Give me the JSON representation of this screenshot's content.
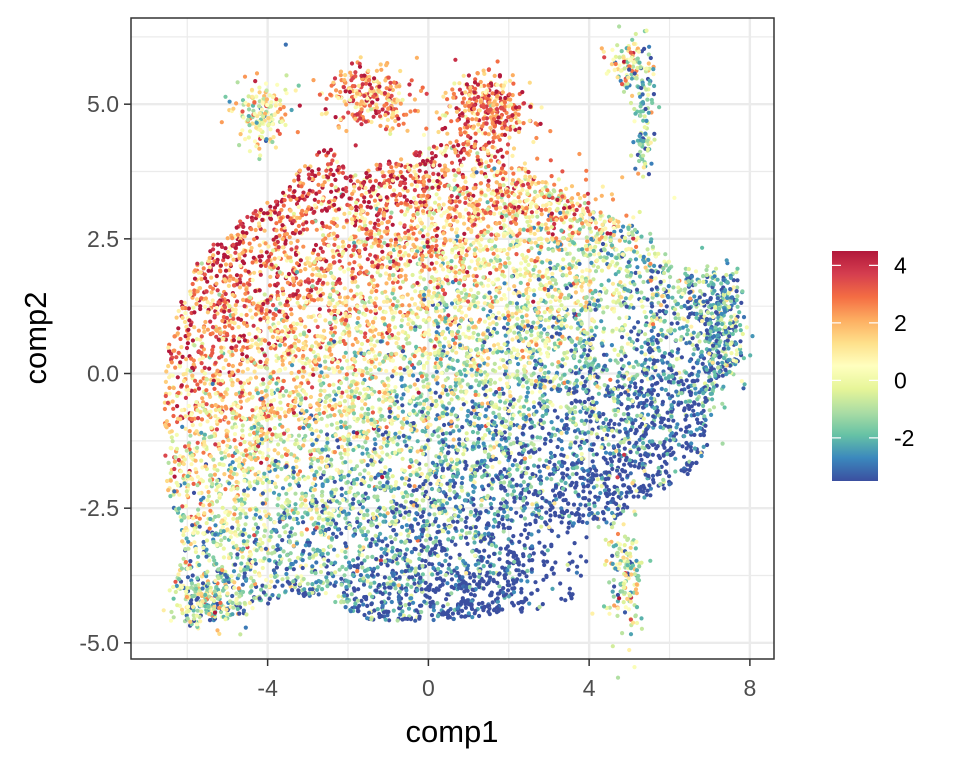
{
  "chart_data": {
    "type": "scatter",
    "title": "",
    "xlabel": "comp1",
    "ylabel": "comp2",
    "xlim": [
      -7.4,
      8.6
    ],
    "ylim": [
      -5.3,
      6.6
    ],
    "x_ticks": [
      -4,
      0,
      4,
      8
    ],
    "x_tick_labels": [
      "-4",
      "0",
      "4",
      "8"
    ],
    "y_ticks": [
      -5,
      -2.5,
      0,
      2.5,
      5
    ],
    "y_tick_labels": [
      "-5.0",
      "-2.5",
      "0.0",
      "2.5",
      "5.0"
    ],
    "grid": true,
    "background": "#ffffff",
    "grid_color": "#ebebeb",
    "color_scale": {
      "name": "Spectral (reversed)",
      "range": [
        -3.5,
        4.5
      ],
      "ticks": [
        4,
        2,
        0,
        -2
      ],
      "tick_labels": [
        "4",
        "2",
        "0",
        "-2"
      ],
      "stops": [
        "#3b4fa0",
        "#3b88bd",
        "#66c2a5",
        "#abdda4",
        "#e6f598",
        "#ffffbf",
        "#fee08b",
        "#fdae61",
        "#f46d43",
        "#d53e4f",
        "#b2183b"
      ]
    },
    "legend_position": "right",
    "point_count_estimate": 12000,
    "regions": [
      {
        "description": "main body low values",
        "x": [
          -1,
          7.8
        ],
        "y": [
          -4.6,
          2
        ],
        "color_mean": -1.8
      },
      {
        "description": "upper-left high values",
        "x": [
          -6.5,
          3.5
        ],
        "y": [
          -1,
          4.4
        ],
        "color_mean": 2.3
      },
      {
        "description": "top cluster left",
        "x": [
          -4.7,
          -3.5
        ],
        "y": [
          4.3,
          5.4
        ],
        "color_mean": 0.3
      },
      {
        "description": "top cluster mid",
        "x": [
          -2.5,
          -0.5
        ],
        "y": [
          4.6,
          5.6
        ],
        "color_mean": 2.5
      },
      {
        "description": "top cluster right",
        "x": [
          0.5,
          2.6
        ],
        "y": [
          4.2,
          5.6
        ],
        "color_mean": 2.7
      },
      {
        "description": "right vertical arm",
        "x": [
          4.6,
          6.0
        ],
        "y": [
          3.5,
          6.1
        ],
        "color_mean": -1.5
      },
      {
        "description": "bottom-right arm",
        "x": [
          4.3,
          5.6
        ],
        "y": [
          -4.6,
          -2.2
        ],
        "color_mean": -0.5
      },
      {
        "description": "bottom-left lobe",
        "x": [
          -6.5,
          -4.5
        ],
        "y": [
          -4.7,
          -3.2
        ],
        "color_mean": -0.5
      }
    ]
  }
}
